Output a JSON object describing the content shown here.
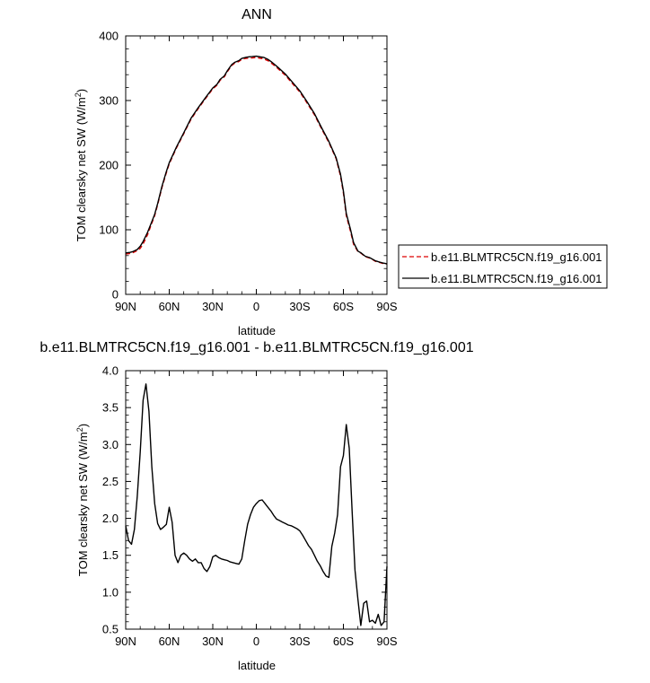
{
  "chart_data": [
    {
      "type": "line",
      "title": "ANN",
      "xlabel": "latitude",
      "ylabel": "TOM clearsky net SW (W/m",
      "ylabel_sup": "2",
      "ylabel_tail": ")",
      "xlim": [
        -90,
        90
      ],
      "ylim": [
        0,
        400
      ],
      "x_ticks": [
        -90,
        -60,
        -30,
        0,
        30,
        60,
        90
      ],
      "x_tick_labels": [
        "90N",
        "60N",
        "30N",
        "0",
        "30S",
        "60S",
        "90S"
      ],
      "y_ticks": [
        0,
        100,
        200,
        300,
        400
      ],
      "y_tick_labels": [
        "0",
        "100",
        "200",
        "300",
        "400"
      ],
      "legend": {
        "placement": "right",
        "entries": [
          {
            "label": "b.e11.BLMTRC5CN.f19_g16.001",
            "color": "#dd0000",
            "dash": true
          },
          {
            "label": "b.e11.BLMTRC5CN.f19_g16.001",
            "color": "#000000",
            "dash": false
          }
        ]
      },
      "series": [
        {
          "color": "#dd0000",
          "dashed": true,
          "x": [
            -90,
            -87,
            -85,
            -82,
            -80,
            -78,
            -75,
            -72,
            -70,
            -68,
            -65,
            -62,
            -60,
            -55,
            -50,
            -45,
            -40,
            -35,
            -30,
            -27,
            -25,
            -22,
            -20,
            -17,
            -15,
            -12,
            -10,
            -7,
            -5,
            -3,
            0,
            3,
            5,
            8,
            10,
            12,
            15,
            20,
            25,
            30,
            35,
            40,
            45,
            50,
            55,
            58,
            60,
            62,
            65,
            67,
            70,
            72,
            75,
            78,
            80,
            82,
            85,
            87,
            90
          ],
          "y": [
            62.3,
            63.3,
            64.6,
            67.6,
            71.2,
            78.1,
            92.1,
            110.2,
            121.9,
            138.8,
            165.4,
            188.3,
            201.9,
            226.8,
            248.7,
            271.1,
            287.5,
            303.0,
            318.0,
            323.7,
            331.2,
            336.8,
            344.6,
            354.0,
            357.6,
            360.4,
            363.8,
            365.3,
            365.6,
            365.9,
            366.5,
            365.3,
            364.6,
            361.6,
            358.5,
            354.8,
            349.1,
            339.0,
            326.0,
            313.0,
            296.0,
            278.0,
            256.0,
            235.0,
            210.0,
            183.0,
            156.9,
            122.0,
            96.5,
            77.6,
            66.1,
            63.9,
            58.4,
            56.4,
            54.0,
            51.3,
            49.3,
            48.1,
            47.0
          ]
        },
        {
          "color": "#000000",
          "dashed": false,
          "x": [
            -90,
            -87,
            -85,
            -82,
            -80,
            -78,
            -75,
            -72,
            -70,
            -68,
            -65,
            -62,
            -60,
            -55,
            -50,
            -45,
            -40,
            -35,
            -30,
            -27,
            -25,
            -22,
            -20,
            -17,
            -15,
            -12,
            -10,
            -7,
            -5,
            -3,
            0,
            3,
            5,
            8,
            10,
            12,
            15,
            20,
            25,
            30,
            35,
            40,
            45,
            50,
            55,
            58,
            60,
            62,
            65,
            67,
            70,
            72,
            75,
            78,
            80,
            82,
            85,
            87,
            90
          ],
          "y": [
            64.2,
            65.0,
            66.2,
            69.5,
            74.5,
            81.8,
            95.8,
            112.5,
            124.0,
            140.5,
            167.2,
            190.2,
            203.8,
            228.2,
            250.1,
            272.6,
            289.0,
            304.5,
            319.5,
            325.2,
            332.7,
            338.2,
            346.0,
            355.4,
            359.0,
            361.8,
            365.2,
            366.9,
            367.6,
            367.9,
            368.6,
            367.4,
            366.8,
            363.8,
            360.6,
            356.9,
            351.1,
            341.0,
            328.0,
            314.9,
            297.9,
            279.9,
            257.7,
            236.7,
            211.4,
            185.8,
            159.9,
            125.3,
            99.5,
            80.3,
            66.9,
            64.5,
            59.0,
            57.0,
            54.6,
            51.9,
            49.9,
            48.8,
            47.3
          ]
        }
      ]
    },
    {
      "type": "line",
      "title": "b.e11.BLMTRC5CN.f19_g16.001 - b.e11.BLMTRC5CN.f19_g16.001",
      "xlabel": "latitude",
      "ylabel": "TOM clearsky net SW (W/m",
      "ylabel_sup": "2",
      "ylabel_tail": ")",
      "xlim": [
        -90,
        90
      ],
      "ylim": [
        0.5,
        4.0
      ],
      "x_ticks": [
        -90,
        -60,
        -30,
        0,
        30,
        60,
        90
      ],
      "x_tick_labels": [
        "90N",
        "60N",
        "30N",
        "0",
        "30S",
        "60S",
        "90S"
      ],
      "y_ticks": [
        0.5,
        1.0,
        1.5,
        2.0,
        2.5,
        3.0,
        3.5,
        4.0
      ],
      "y_tick_labels": [
        "0.5",
        "1.0",
        "1.5",
        "2.0",
        "2.5",
        "3.0",
        "3.5",
        "4.0"
      ],
      "series": [
        {
          "color": "#000000",
          "dashed": false,
          "x": [
            -90,
            -88,
            -86,
            -84,
            -82,
            -80,
            -78,
            -76,
            -74,
            -72,
            -70,
            -68,
            -66,
            -64,
            -62,
            -60,
            -58,
            -56,
            -54,
            -52,
            -50,
            -48,
            -46,
            -44,
            -42,
            -40,
            -38,
            -36,
            -34,
            -32,
            -30,
            -28,
            -26,
            -24,
            -22,
            -20,
            -18,
            -16,
            -14,
            -12,
            -10,
            -8,
            -6,
            -4,
            -2,
            0,
            2,
            4,
            6,
            8,
            10,
            12,
            14,
            16,
            18,
            20,
            22,
            24,
            26,
            28,
            30,
            32,
            34,
            36,
            38,
            40,
            42,
            44,
            46,
            48,
            50,
            52,
            54,
            56,
            58,
            60,
            62,
            64,
            66,
            68,
            70,
            72,
            74,
            76,
            78,
            80,
            82,
            84,
            86,
            88,
            90
          ],
          "y": [
            1.9,
            1.7,
            1.65,
            1.85,
            2.3,
            2.9,
            3.6,
            3.82,
            3.45,
            2.7,
            2.2,
            1.93,
            1.85,
            1.88,
            1.92,
            2.15,
            1.95,
            1.5,
            1.4,
            1.5,
            1.53,
            1.5,
            1.45,
            1.42,
            1.45,
            1.4,
            1.4,
            1.32,
            1.28,
            1.35,
            1.48,
            1.5,
            1.47,
            1.45,
            1.44,
            1.43,
            1.41,
            1.4,
            1.39,
            1.38,
            1.45,
            1.7,
            1.92,
            2.05,
            2.15,
            2.2,
            2.24,
            2.25,
            2.2,
            2.15,
            2.1,
            2.04,
            1.99,
            1.97,
            1.95,
            1.93,
            1.91,
            1.9,
            1.88,
            1.86,
            1.83,
            1.77,
            1.7,
            1.63,
            1.58,
            1.5,
            1.42,
            1.36,
            1.28,
            1.22,
            1.2,
            1.62,
            1.8,
            2.05,
            2.7,
            2.85,
            3.27,
            2.95,
            2.1,
            1.3,
            0.9,
            0.55,
            0.85,
            0.88,
            0.6,
            0.62,
            0.58,
            0.7,
            0.55,
            0.6,
            1.35
          ]
        }
      ]
    }
  ]
}
